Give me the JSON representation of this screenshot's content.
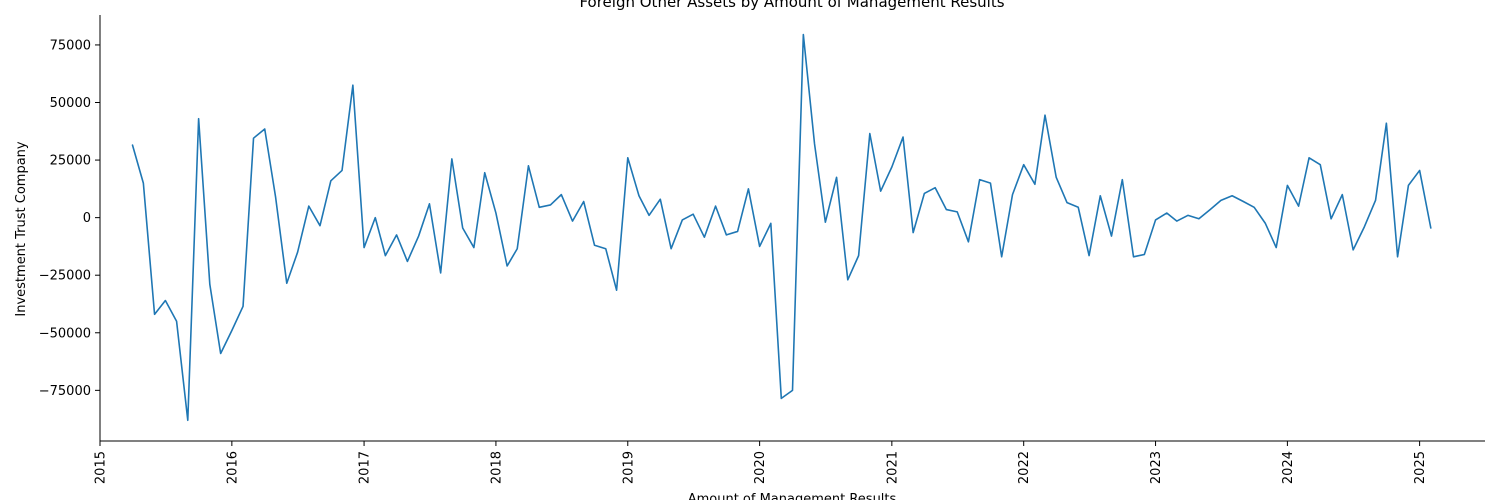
{
  "chart_data": {
    "type": "line",
    "title": "Foreign Other Assets by Amount of Management Results",
    "xlabel": "Amount of Management Results",
    "ylabel": "Investment Trust Company",
    "xlim": [
      "2015-01-01",
      "2025-07-01"
    ],
    "ylim": [
      -97000,
      88000
    ],
    "x_ticks": [
      "2015",
      "2016",
      "2017",
      "2018",
      "2019",
      "2020",
      "2021",
      "2022",
      "2023",
      "2024",
      "2025"
    ],
    "y_ticks": [
      -75000,
      -50000,
      -25000,
      0,
      25000,
      50000,
      75000
    ],
    "y_tick_labels": [
      "−75000",
      "−50000",
      "−25000",
      "0",
      "25000",
      "50000",
      "75000"
    ],
    "grid": false,
    "color": "#1f77b4",
    "series": [
      {
        "x": [
          "2015-04",
          "2015-05",
          "2015-06",
          "2015-07",
          "2015-08",
          "2015-09",
          "2015-10",
          "2015-11",
          "2015-12",
          "2016-01",
          "2016-02",
          "2016-03",
          "2016-04",
          "2016-05",
          "2016-06",
          "2016-07",
          "2016-08",
          "2016-09",
          "2016-10",
          "2016-11",
          "2016-12",
          "2017-01",
          "2017-02",
          "2017-03",
          "2017-04",
          "2017-05",
          "2017-06",
          "2017-07",
          "2017-08",
          "2017-09",
          "2017-10",
          "2017-11",
          "2017-12",
          "2018-01",
          "2018-02",
          "2018-03",
          "2018-04",
          "2018-05",
          "2018-06",
          "2018-07",
          "2018-08",
          "2018-09",
          "2018-10",
          "2018-11",
          "2018-12",
          "2019-01",
          "2019-02",
          "2019-03",
          "2019-04",
          "2019-05",
          "2019-06",
          "2019-07",
          "2019-08",
          "2019-09",
          "2019-10",
          "2019-11",
          "2019-12",
          "2020-01",
          "2020-02",
          "2020-03",
          "2020-04",
          "2020-05",
          "2020-06",
          "2020-07",
          "2020-08",
          "2020-09",
          "2020-10",
          "2020-11",
          "2020-12",
          "2021-01",
          "2021-02",
          "2021-03",
          "2021-04",
          "2021-05",
          "2021-06",
          "2021-07",
          "2021-08",
          "2021-09",
          "2021-10",
          "2021-11",
          "2021-12",
          "2022-01",
          "2022-02",
          "2022-03",
          "2022-04",
          "2022-05",
          "2022-06",
          "2022-07",
          "2022-08",
          "2022-09",
          "2022-10",
          "2022-11",
          "2022-12",
          "2023-01",
          "2023-02",
          "2023-03",
          "2023-04",
          "2023-05",
          "2023-06",
          "2023-07",
          "2023-08",
          "2023-09",
          "2023-10",
          "2023-11",
          "2023-12",
          "2024-01",
          "2024-02",
          "2024-03",
          "2024-04",
          "2024-05",
          "2024-06",
          "2024-07",
          "2024-08",
          "2024-09",
          "2024-10",
          "2024-11",
          "2024-12",
          "2025-01",
          "2025-02"
        ],
        "y": [
          31500,
          15000,
          -42000,
          -36000,
          -45000,
          -88000,
          43000,
          -29000,
          -59000,
          -49000,
          -38500,
          34500,
          38500,
          9000,
          -28500,
          -15000,
          5000,
          -3500,
          16000,
          20500,
          57500,
          -13000,
          0,
          -16500,
          -7500,
          -19000,
          -8000,
          6000,
          -24000,
          25500,
          -4500,
          -13000,
          19500,
          2000,
          -21000,
          -13500,
          22500,
          4500,
          5500,
          10000,
          -1500,
          7000,
          -12000,
          -13500,
          -31500,
          26000,
          9500,
          1000,
          8000,
          -13500,
          -1000,
          1500,
          -8500,
          5000,
          -7500,
          -6000,
          12500,
          -12500,
          -2500,
          -78500,
          -75000,
          79500,
          32000,
          -2000,
          17500,
          -27000,
          -16500,
          36500,
          11500,
          22000,
          35000,
          -6500,
          10500,
          13000,
          3500,
          2500,
          -10500,
          16500,
          15000,
          -17000,
          10000,
          23000,
          14500,
          44500,
          17500,
          6500,
          4500,
          -16500,
          9500,
          -8000,
          16500,
          -17000,
          -16000,
          -1000,
          2000,
          -1500,
          1000,
          -500,
          3500,
          7500,
          9500,
          7000,
          4500,
          -2500,
          -13000,
          14000,
          5000,
          26000,
          23000,
          -500,
          10000,
          -14000,
          -4000,
          7500,
          41000,
          -17000,
          14000,
          20500,
          -4500
        ]
      }
    ]
  }
}
